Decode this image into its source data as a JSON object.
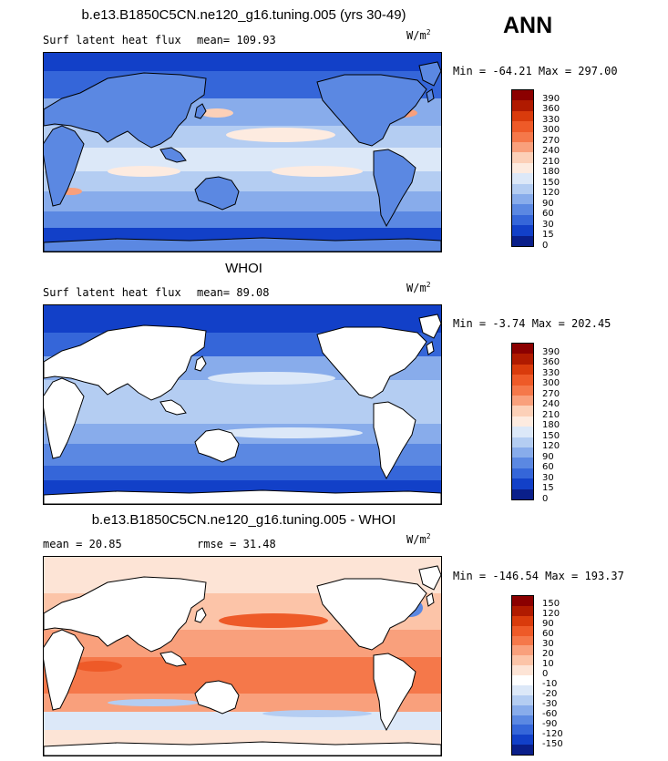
{
  "season": "ANN",
  "units": {
    "base": "W/m",
    "exp": "2"
  },
  "land_color": "#ffffff",
  "coast_color": "#000000",
  "panels": [
    {
      "title": "b.e13.B1850C5CN.ne120_g16.tuning.005 (yrs 30-49)",
      "left_label": "Surf latent heat flux",
      "stat_label": "mean=",
      "stat_value": "109.93",
      "minmax": "Min = -64.21 Max = 297.00",
      "map_kind": "model",
      "colorbar": {
        "labels": [
          "390",
          "360",
          "330",
          "300",
          "270",
          "240",
          "210",
          "180",
          "150",
          "120",
          "90",
          "60",
          "30",
          "15",
          "0"
        ],
        "colors": [
          "#8b0000",
          "#b01a00",
          "#d93b0c",
          "#ee5a28",
          "#f5784a",
          "#f9a07c",
          "#fcd0b8",
          "#fdebe0",
          "#dce8f8",
          "#b4cdf2",
          "#88aceb",
          "#5b88e2",
          "#3566d9",
          "#1240c8",
          "#0a1f8a"
        ]
      }
    },
    {
      "title": "WHOI",
      "left_label": "Surf latent heat flux",
      "stat_label": "mean=",
      "stat_value": "89.08",
      "minmax": "Min =  -3.74 Max = 202.45",
      "map_kind": "obs",
      "colorbar": {
        "labels": [
          "390",
          "360",
          "330",
          "300",
          "270",
          "240",
          "210",
          "180",
          "150",
          "120",
          "90",
          "60",
          "30",
          "15",
          "0"
        ],
        "colors": [
          "#8b0000",
          "#b01a00",
          "#d93b0c",
          "#ee5a28",
          "#f5784a",
          "#f9a07c",
          "#fcd0b8",
          "#fdebe0",
          "#dce8f8",
          "#b4cdf2",
          "#88aceb",
          "#5b88e2",
          "#3566d9",
          "#1240c8",
          "#0a1f8a"
        ]
      }
    },
    {
      "title": "b.e13.B1850C5CN.ne120_g16.tuning.005 - WHOI",
      "left_label": "mean =",
      "stat_label": "rmse =",
      "left_value": "20.85",
      "stat_value": "31.48",
      "minmax": "Min = -146.54 Max = 193.37",
      "map_kind": "diff",
      "colorbar": {
        "labels": [
          "150",
          "120",
          "90",
          "60",
          "30",
          "20",
          "10",
          "0",
          "-10",
          "-20",
          "-30",
          "-60",
          "-90",
          "-120",
          "-150"
        ],
        "colors": [
          "#8b0000",
          "#b01a00",
          "#d93b0c",
          "#ee5a28",
          "#f5784a",
          "#f9a07c",
          "#fcc4a8",
          "#fde4d6",
          "#ffffff",
          "#dce8f8",
          "#b4cdf2",
          "#88aceb",
          "#5b88e2",
          "#3566d9",
          "#1240c8",
          "#0a1f8a"
        ]
      }
    }
  ]
}
